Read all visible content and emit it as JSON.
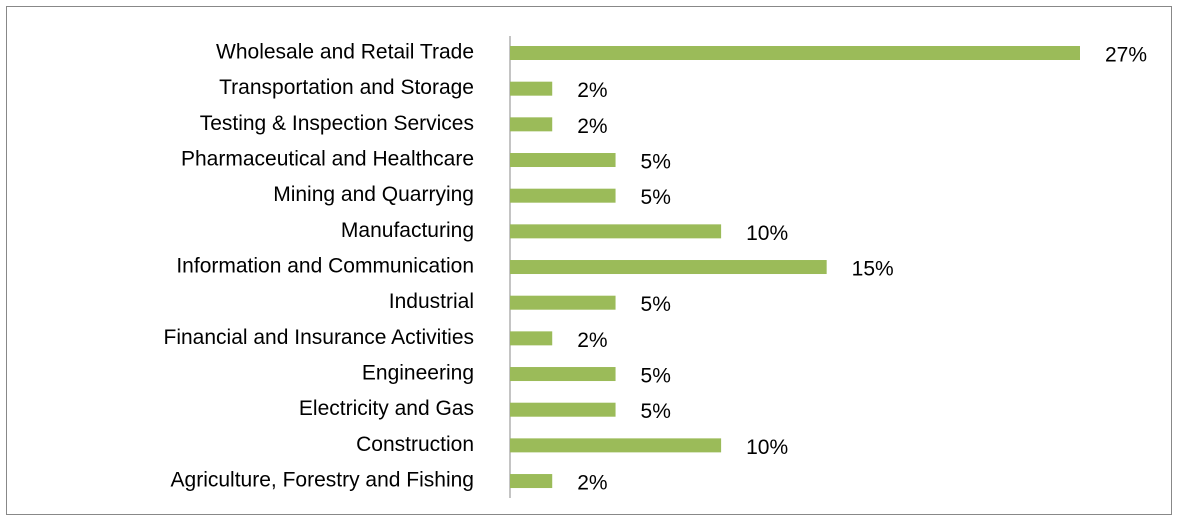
{
  "chart_data": {
    "type": "bar",
    "orientation": "horizontal",
    "categories": [
      "Wholesale and Retail Trade",
      "Transportation and Storage",
      "Testing & Inspection Services",
      "Pharmaceutical and Healthcare",
      "Mining and Quarrying",
      "Manufacturing",
      "Information and Communication",
      "Industrial",
      "Financial and Insurance Activities",
      "Engineering",
      "Electricity and Gas",
      "Construction",
      "Agriculture, Forestry and Fishing"
    ],
    "values": [
      27,
      2,
      2,
      5,
      5,
      10,
      15,
      5,
      2,
      5,
      5,
      10,
      2
    ],
    "value_labels": [
      "27%",
      "2%",
      "2%",
      "5%",
      "5%",
      "10%",
      "15%",
      "5%",
      "2%",
      "5%",
      "5%",
      "10%",
      "2%"
    ],
    "color": "#9bbb59"
  }
}
